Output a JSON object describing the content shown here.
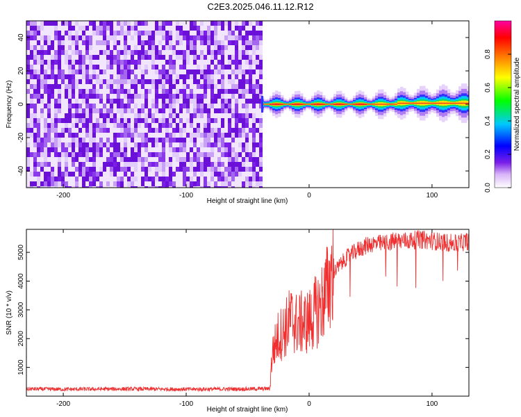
{
  "title": "C2E3.2025.046.11.12.R12",
  "chart_data": [
    {
      "type": "heatmap",
      "xlabel": "Height of straight line (km)",
      "ylabel": "Frequency (Hz)",
      "xlim": [
        -230,
        130
      ],
      "ylim": [
        -50,
        50
      ],
      "x_ticks": [
        -200,
        -100,
        0,
        100
      ],
      "y_ticks": [
        -40,
        -20,
        0,
        20,
        40
      ],
      "grid": false,
      "colorbar": {
        "label": "Normalized spectral amplitude",
        "range": [
          0.0,
          1.0
        ],
        "ticks": [
          0.0,
          0.2,
          0.4,
          0.6,
          0.8
        ],
        "colors": [
          "#ffffff",
          "#d8b4f8",
          "#7a1ee8",
          "#0000ff",
          "#00c8ff",
          "#00ff00",
          "#ffff00",
          "#ff8000",
          "#ff0000",
          "#ff00a0"
        ]
      },
      "regions": [
        {
          "x_range": [
            -230,
            -39
          ],
          "description": "broadband noise",
          "amplitude_range": [
            0.0,
            0.15
          ]
        },
        {
          "x_range": [
            -39,
            130
          ],
          "description": "narrow band near 0 Hz",
          "center_freq": 0,
          "peak_amplitude": 1.0
        }
      ]
    },
    {
      "type": "line",
      "xlabel": "Height of straight line (km)",
      "ylabel": "SNR (10 * v/v)",
      "xlim": [
        -230,
        130
      ],
      "ylim": [
        0,
        5800
      ],
      "x_ticks": [
        -200,
        -100,
        0,
        100
      ],
      "y_ticks": [
        1000,
        2000,
        3000,
        4000,
        5000
      ],
      "grid": false,
      "series": [
        {
          "color": "#f03030",
          "x": [
            -230,
            -200,
            -150,
            -100,
            -50,
            -32,
            -30,
            -25,
            -20,
            -15,
            -10,
            0,
            10,
            20,
            30,
            40,
            50,
            60,
            70,
            80,
            90,
            100,
            110,
            120,
            130
          ],
          "y": [
            250,
            240,
            250,
            240,
            250,
            260,
            1500,
            2100,
            2300,
            2700,
            2500,
            2600,
            3200,
            4300,
            4800,
            5100,
            5300,
            5300,
            5400,
            5400,
            5450,
            5400,
            5350,
            5300,
            5400
          ]
        }
      ]
    }
  ]
}
